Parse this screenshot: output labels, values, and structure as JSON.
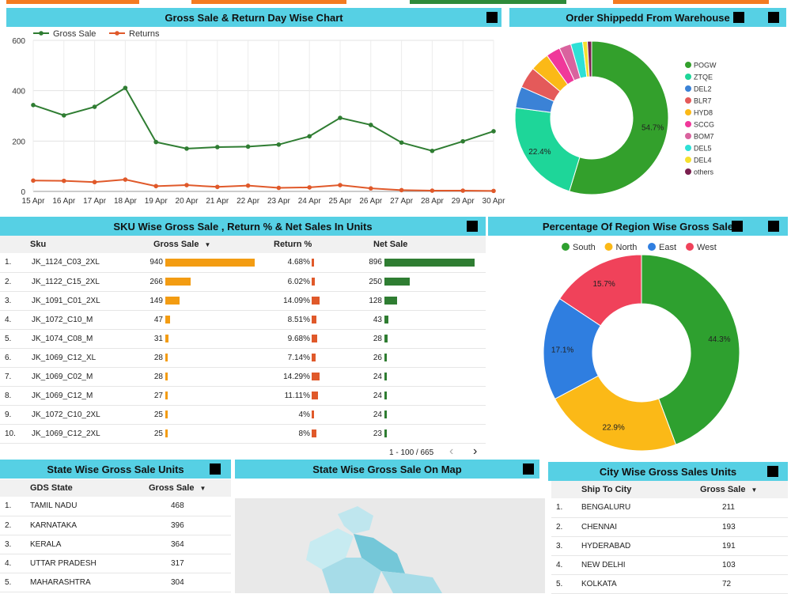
{
  "colors": {
    "header": "#56d0e4",
    "gross": "#2f7d32",
    "returns": "#e0592a",
    "orange_bar": "#f39c12",
    "red_bar": "#e0592a",
    "green_bar": "#2f7d32",
    "top_orange": "#f47b20",
    "top_green": "#2e8b3a"
  },
  "line_chart": {
    "title": "Gross Sale & Return Day Wise Chart",
    "chart_data": {
      "type": "line",
      "title": "Gross Sale & Return Day Wise Chart",
      "x": [
        "15 Apr",
        "16 Apr",
        "17 Apr",
        "18 Apr",
        "19 Apr",
        "20 Apr",
        "21 Apr",
        "22 Apr",
        "23 Apr",
        "24 Apr",
        "25 Apr",
        "26 Apr",
        "27 Apr",
        "28 Apr",
        "29 Apr",
        "30 Apr"
      ],
      "series": [
        {
          "name": "Gross Sale",
          "color": "#2f7d32",
          "values": [
            343,
            302,
            336,
            411,
            196,
            170,
            176,
            178,
            186,
            219,
            292,
            264,
            194,
            161,
            199,
            239
          ]
        },
        {
          "name": "Returns",
          "color": "#e0592a",
          "values": [
            43,
            42,
            37,
            47,
            21,
            25,
            18,
            23,
            14,
            16,
            25,
            12,
            5,
            3,
            3,
            2
          ]
        }
      ],
      "yticks": [
        0,
        200,
        400,
        600
      ],
      "ylim": [
        0,
        600
      ],
      "legend": "top-left",
      "grid": true
    }
  },
  "warehouse": {
    "title": "Order Shippedd From Warehouse",
    "chart_data": {
      "type": "pie",
      "title": "Order Shippedd From Warehouse",
      "labels": [
        "POGW",
        "ZTQE",
        "DEL2",
        "BLR7",
        "HYD8",
        "SCCG",
        "BOM7",
        "DEL5",
        "DEL4",
        "others"
      ],
      "values": [
        54.7,
        22.4,
        4.5,
        4.5,
        4.0,
        3.0,
        2.5,
        2.5,
        1.0,
        0.9
      ],
      "colors": [
        "#33a02c",
        "#1ed699",
        "#3b82d6",
        "#e45a5a",
        "#fbb917",
        "#f0389a",
        "#d9639e",
        "#2ee0d6",
        "#f5e02e",
        "#7a1f4f"
      ],
      "shown_labels": [
        "54.7%",
        "22.4%",
        "",
        "",
        "",
        "",
        "",
        "",
        "",
        ""
      ],
      "legend": "right"
    }
  },
  "sku_table": {
    "title": "SKU Wise Gross Sale , Return % & Net Sales In Units",
    "headers": {
      "sku": "Sku",
      "gross": "Gross Sale",
      "ret": "Return %",
      "net": "Net Sale"
    },
    "sort_arrow": "▼",
    "rows": [
      {
        "n": "1.",
        "sku": "JK_1124_C03_2XL",
        "gross": 940,
        "ret": "4.68%",
        "ret_v": 4.68,
        "net": 896
      },
      {
        "n": "2.",
        "sku": "JK_1122_C15_2XL",
        "gross": 266,
        "ret": "6.02%",
        "ret_v": 6.02,
        "net": 250
      },
      {
        "n": "3.",
        "sku": "JK_1091_C01_2XL",
        "gross": 149,
        "ret": "14.09%",
        "ret_v": 14.09,
        "net": 128
      },
      {
        "n": "4.",
        "sku": "JK_1072_C10_M",
        "gross": 47,
        "ret": "8.51%",
        "ret_v": 8.51,
        "net": 43
      },
      {
        "n": "5.",
        "sku": "JK_1074_C08_M",
        "gross": 31,
        "ret": "9.68%",
        "ret_v": 9.68,
        "net": 28
      },
      {
        "n": "6.",
        "sku": "JK_1069_C12_XL",
        "gross": 28,
        "ret": "7.14%",
        "ret_v": 7.14,
        "net": 26
      },
      {
        "n": "7.",
        "sku": "JK_1069_C02_M",
        "gross": 28,
        "ret": "14.29%",
        "ret_v": 14.29,
        "net": 24
      },
      {
        "n": "8.",
        "sku": "JK_1069_C12_M",
        "gross": 27,
        "ret": "11.11%",
        "ret_v": 11.11,
        "net": 24
      },
      {
        "n": "9.",
        "sku": "JK_1072_C10_2XL",
        "gross": 25,
        "ret": "4%",
        "ret_v": 4,
        "net": 24
      },
      {
        "n": "10.",
        "sku": "JK_1069_C12_2XL",
        "gross": 25,
        "ret": "8%",
        "ret_v": 8,
        "net": 23
      }
    ],
    "pagination": "1 - 100 / 665",
    "prev": "‹",
    "next": "›"
  },
  "region": {
    "title": "Percentage Of Region Wise Gross Sale",
    "chart_data": {
      "type": "pie",
      "title": "Percentage Of Region Wise Gross Sale",
      "labels": [
        "South",
        "North",
        "East",
        "West"
      ],
      "values": [
        44.3,
        22.9,
        17.1,
        15.7
      ],
      "display": [
        "44.3%",
        "22.9%",
        "17.1%",
        "15.7%"
      ],
      "colors": [
        "#2ea02f",
        "#fbb917",
        "#2f7ee0",
        "#f0425a"
      ],
      "legend": "top"
    }
  },
  "state_table": {
    "title": "State Wise Gross Sale Units",
    "headers": {
      "state": "GDS State",
      "gross": "Gross Sale"
    },
    "sort_arrow": "▼",
    "rows": [
      {
        "n": "1.",
        "state": "TAMIL NADU",
        "gross": "468"
      },
      {
        "n": "2.",
        "state": "KARNATAKA",
        "gross": "396"
      },
      {
        "n": "3.",
        "state": "KERALA",
        "gross": "364"
      },
      {
        "n": "4.",
        "state": "UTTAR PRADESH",
        "gross": "317"
      },
      {
        "n": "5.",
        "state": "MAHARASHTRA",
        "gross": "304"
      }
    ]
  },
  "map": {
    "title": "State Wise Gross Sale On Map"
  },
  "city_table": {
    "title": "City Wise Gross Sales Units",
    "headers": {
      "city": "Ship To City",
      "gross": "Gross Sale"
    },
    "sort_arrow": "▼",
    "rows": [
      {
        "n": "1.",
        "city": "BENGALURU",
        "gross": "211"
      },
      {
        "n": "2.",
        "city": "CHENNAI",
        "gross": "193"
      },
      {
        "n": "3.",
        "city": "HYDERABAD",
        "gross": "191"
      },
      {
        "n": "4.",
        "city": "NEW DELHI",
        "gross": "103"
      },
      {
        "n": "5.",
        "city": "KOLKATA",
        "gross": "72"
      }
    ]
  }
}
